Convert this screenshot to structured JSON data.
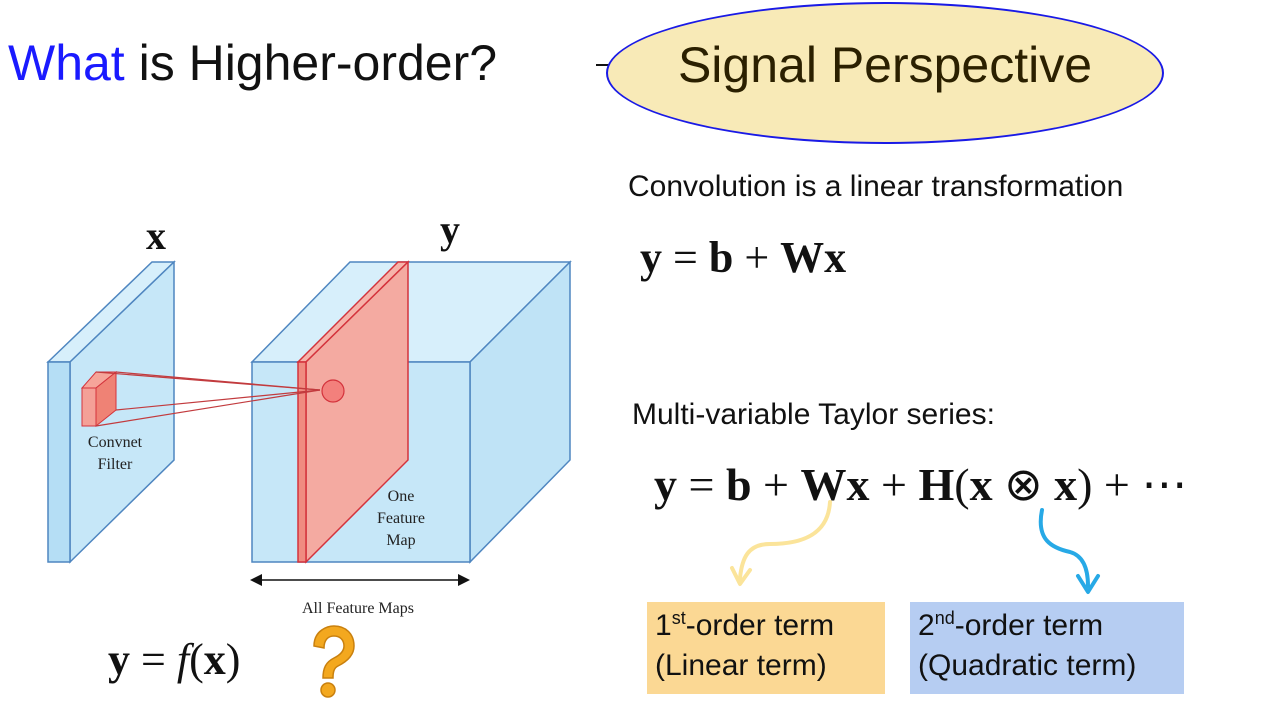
{
  "title": {
    "highlight": "What",
    "rest": " is Higher-order?",
    "perspective": "Signal Perspective"
  },
  "diagram": {
    "input_label": "x",
    "output_label": "y",
    "filter_label_line1": "Convnet",
    "filter_label_line2": "Filter",
    "feature_map_line1": "One",
    "feature_map_line2": "Feature",
    "feature_map_line3": "Map",
    "all_maps_label": "All Feature Maps"
  },
  "convolution": {
    "text": "Convolution is a linear transformation"
  },
  "taylor": {
    "text": "Multi-variable Taylor series:"
  },
  "terms": {
    "first_sup": "st",
    "first_line1": "-order term",
    "first_line2": "(Linear term)",
    "second_sup": "nd",
    "second_line1": "-order term",
    "second_line2": "(Quadratic term)"
  },
  "colors": {
    "volume_fill": "#c6e7f8",
    "volume_stroke": "#4f86c0",
    "map_fill": "#f4aaa1",
    "map_stroke": "#d4333c",
    "first_box": "#fbd894",
    "second_box": "#b6cdf2",
    "question": "#f3a81f"
  }
}
